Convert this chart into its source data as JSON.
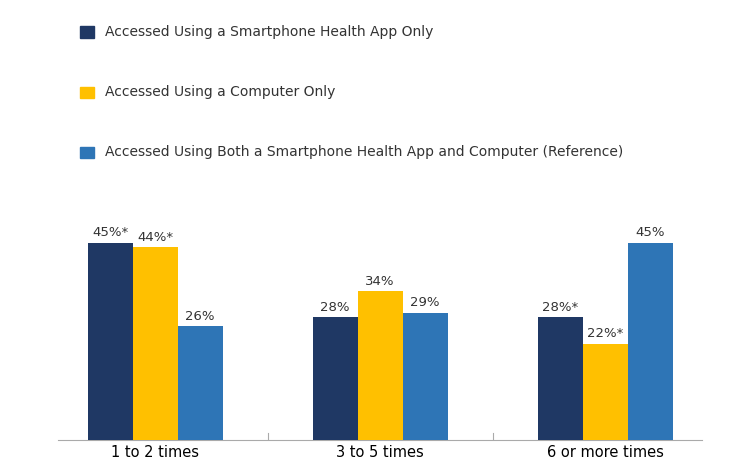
{
  "categories": [
    "1 to 2 times",
    "3 to 5 times",
    "6 or more times"
  ],
  "series": [
    {
      "label": "Accessed Using a Smartphone Health App Only",
      "color": "#1F3864",
      "values": [
        45,
        28,
        28
      ],
      "annotations": [
        "45%*",
        "28%",
        "28%*"
      ]
    },
    {
      "label": "Accessed Using a Computer Only",
      "color": "#FFC000",
      "values": [
        44,
        34,
        22
      ],
      "annotations": [
        "44%*",
        "34%",
        "22%*"
      ]
    },
    {
      "label": "Accessed Using Both a Smartphone Health App and Computer (Reference)",
      "color": "#2E75B6",
      "values": [
        26,
        29,
        45
      ],
      "annotations": [
        "26%",
        "29%",
        "45%"
      ]
    }
  ],
  "ylim": [
    0,
    55
  ],
  "bar_width": 0.2,
  "annotation_fontsize": 9.5,
  "legend_fontsize": 10,
  "tick_fontsize": 10.5,
  "background_color": "#FFFFFF"
}
